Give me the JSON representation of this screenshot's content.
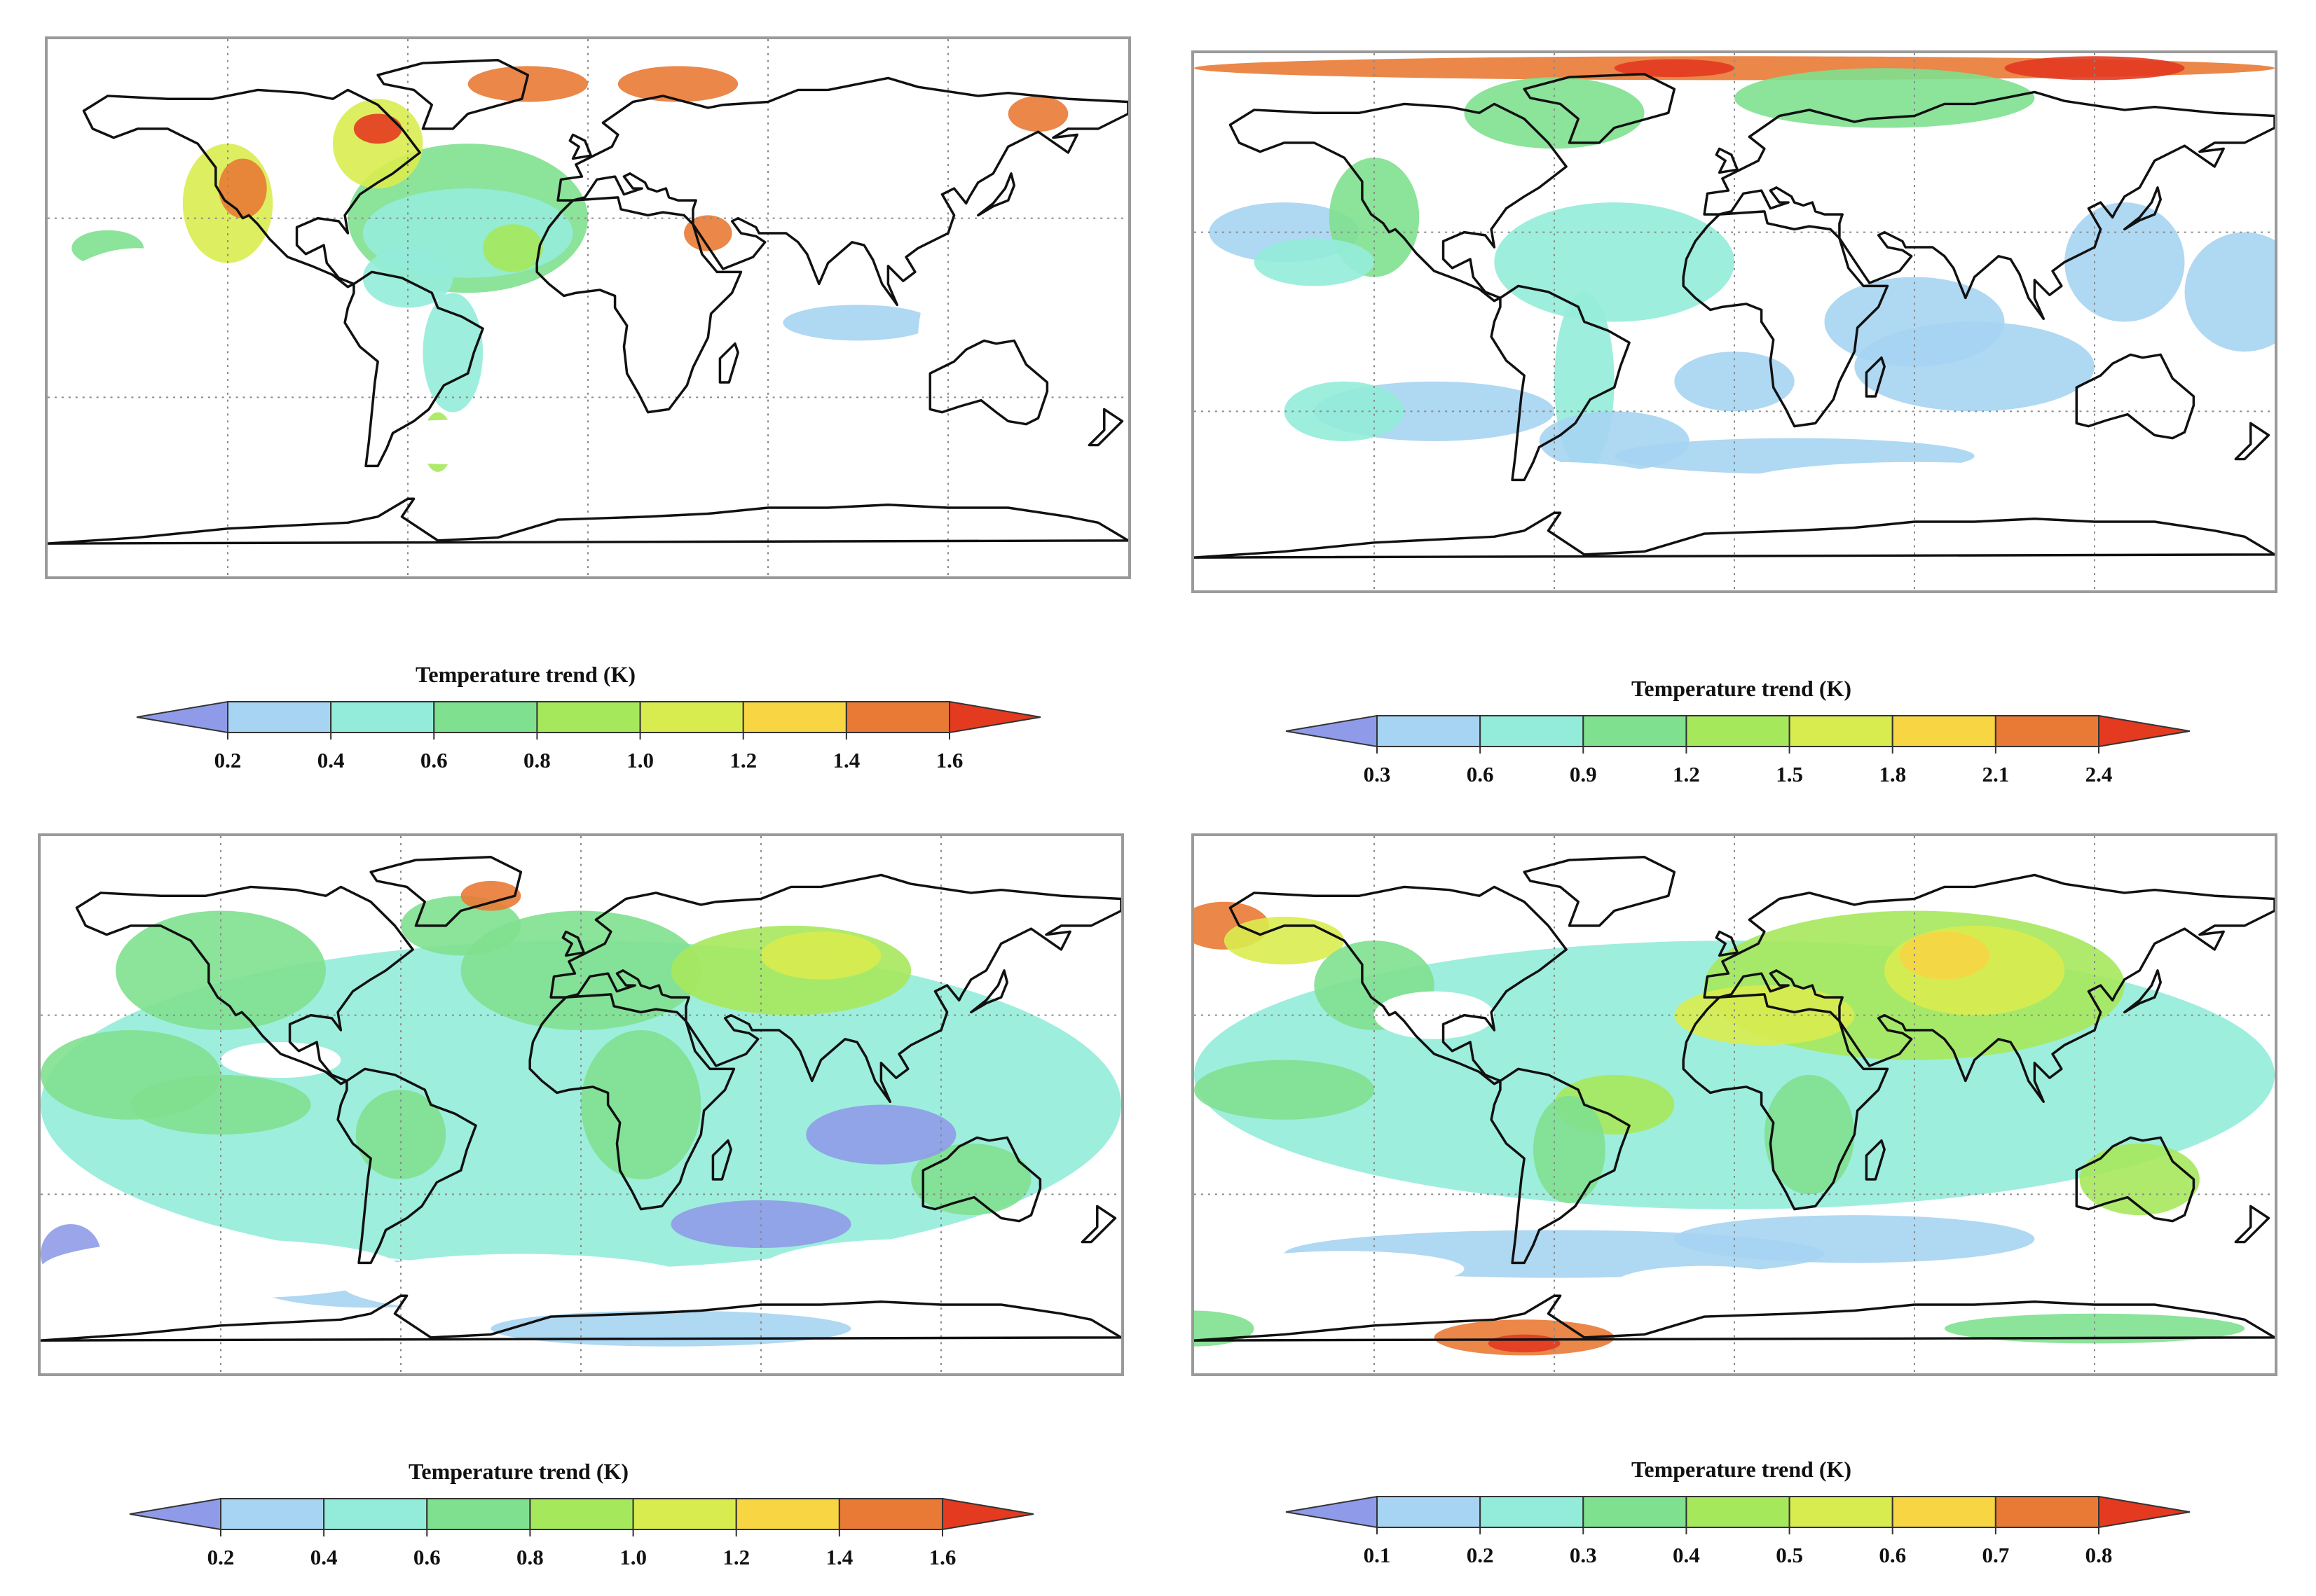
{
  "panels": [
    {
      "colorbar": {
        "title": "Temperature trend (K)",
        "ticks": [
          "0.2",
          "0.4",
          "0.6",
          "0.8",
          "1.0",
          "1.2",
          "1.4",
          "1.6"
        ]
      },
      "fill_level": "low"
    },
    {
      "colorbar": {
        "title": "Temperature trend (K)",
        "ticks": [
          "0.3",
          "0.6",
          "0.9",
          "1.2",
          "1.5",
          "1.8",
          "2.1",
          "2.4"
        ]
      },
      "fill_level": "medium"
    },
    {
      "colorbar": {
        "title": "Temperature trend (K)",
        "ticks": [
          "0.2",
          "0.4",
          "0.6",
          "0.8",
          "1.0",
          "1.2",
          "1.4",
          "1.6"
        ]
      },
      "fill_level": "high"
    },
    {
      "colorbar": {
        "title": "Temperature trend (K)",
        "ticks": [
          "0.1",
          "0.2",
          "0.3",
          "0.4",
          "0.5",
          "0.6",
          "0.7",
          "0.8"
        ]
      },
      "fill_level": "high-warm"
    }
  ],
  "palette": [
    "#8f9be8",
    "#a6d4f2",
    "#93ecd9",
    "#7fe08f",
    "#a6e85c",
    "#d9ec4f",
    "#f7d543",
    "#e87a35",
    "#e33a20"
  ]
}
